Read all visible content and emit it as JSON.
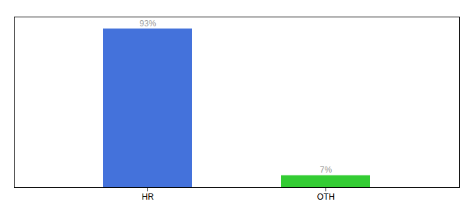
{
  "chart_data": {
    "type": "bar",
    "categories": [
      "HR",
      "OTH"
    ],
    "values": [
      93,
      7
    ],
    "value_labels": [
      "93%",
      "7%"
    ],
    "data_labels": true,
    "colors": [
      "#4472db",
      "#33cc33"
    ],
    "ylim": [
      0,
      100
    ],
    "tick_labels": "x",
    "grid": false
  }
}
